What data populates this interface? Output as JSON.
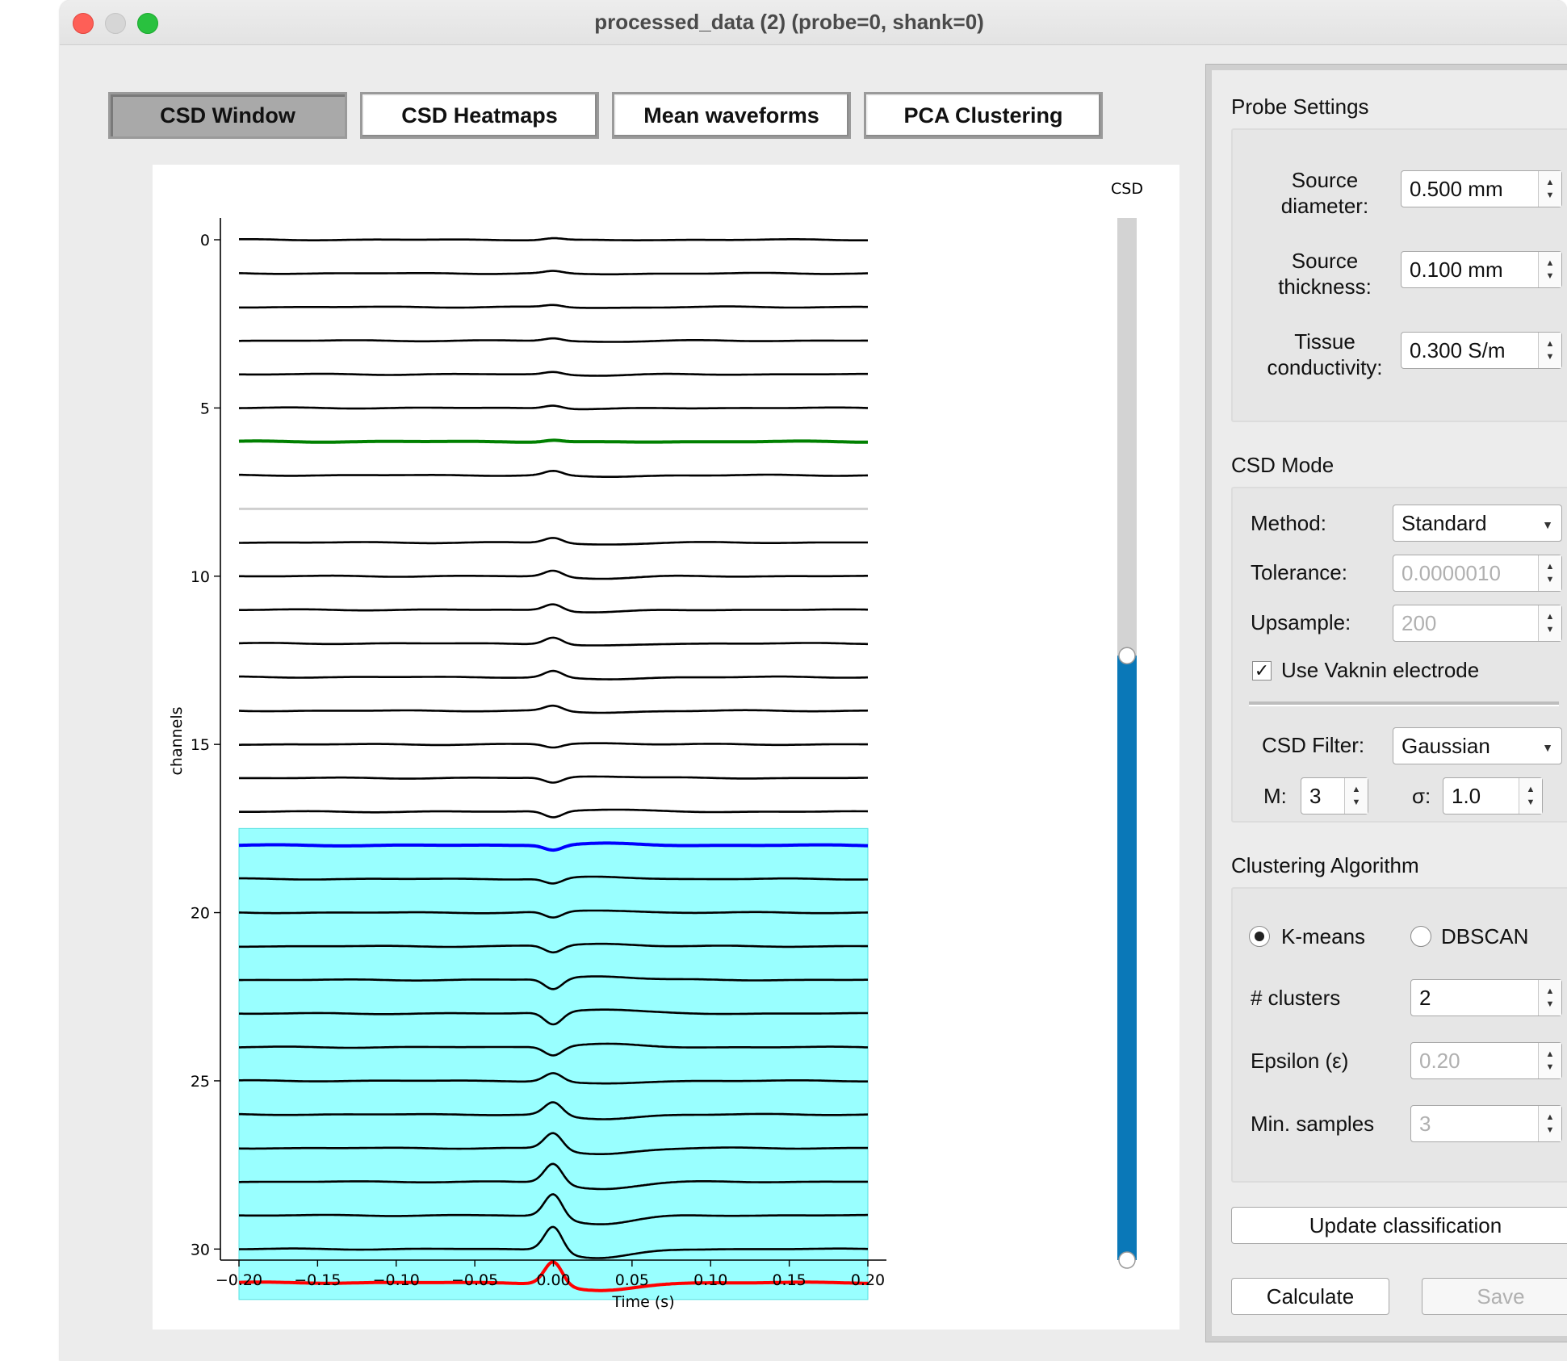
{
  "window": {
    "title": "processed_data (2) (probe=0, shank=0)"
  },
  "tabs": [
    {
      "label": "CSD Window",
      "active": true
    },
    {
      "label": "CSD Heatmaps",
      "active": false
    },
    {
      "label": "Mean waveforms",
      "active": false
    },
    {
      "label": "PCA Clustering",
      "active": false
    }
  ],
  "colors": {
    "trace": "#000000",
    "highlight_green": "#008000",
    "highlight_blue": "#0000ff",
    "highlight_red": "#ff0000",
    "window_fill": "#99ffff",
    "slider_fill": "#0a78b8",
    "slider_track": "#d3d3d3",
    "removed_channel": "#cfcfcf"
  },
  "csd_slider": {
    "label": "CSD",
    "level": 0.42
  },
  "chart_data": {
    "type": "line",
    "xlabel": "Time (s)",
    "ylabel": "channels",
    "xlim": [
      -0.2,
      0.2
    ],
    "ylim": [
      32.3,
      -0.8
    ],
    "xticks": [
      "−0.20",
      "−0.15",
      "−0.10",
      "−0.05",
      "0.00",
      "0.05",
      "0.10",
      "0.15",
      "0.20"
    ],
    "xtick_values": [
      -0.2,
      -0.15,
      -0.1,
      -0.05,
      0.0,
      0.05,
      0.1,
      0.15,
      0.2
    ],
    "yticks": [
      "0",
      "5",
      "10",
      "15",
      "20",
      "25",
      "30"
    ],
    "ytick_values": [
      0,
      5,
      10,
      15,
      20,
      25,
      30
    ],
    "channel_count": 32,
    "removed_channel": 8,
    "highlight_channels": {
      "green": 6,
      "blue": 18,
      "red": 31
    },
    "selected_window": {
      "from_channel": 17.5,
      "to_channel": 31.5,
      "x": [
        -0.2,
        0.2
      ]
    },
    "waveform_amplitudes": [
      0.2,
      0.25,
      0.25,
      0.3,
      0.3,
      0.35,
      0.2,
      0.5,
      0,
      0.6,
      0.7,
      0.75,
      0.8,
      0.75,
      0.6,
      -0.4,
      -0.6,
      -0.7,
      -0.55,
      -0.6,
      -0.7,
      -0.8,
      -1.2,
      -1.4,
      -1.0,
      1.0,
      1.5,
      1.9,
      2.3,
      2.7,
      2.9,
      2.7
    ]
  },
  "panel": {
    "probe_settings": {
      "title": "Probe Settings",
      "source_diameter": {
        "label": "Source\ndiameter:",
        "value": "0.500 mm"
      },
      "source_thickness": {
        "label": "Source\nthickness:",
        "value": "0.100 mm"
      },
      "tissue_conductivity": {
        "label": "Tissue\nconductivity:",
        "value": "0.300 S/m"
      }
    },
    "csd_mode": {
      "title": "CSD Mode",
      "method_label": "Method:",
      "method_value": "Standard",
      "tolerance_label": "Tolerance:",
      "tolerance_value": "0.0000010",
      "upsample_label": "Upsample:",
      "upsample_value": "200",
      "vaknin_label": "Use Vaknin electrode",
      "vaknin_checked": true,
      "filter_label": "CSD Filter:",
      "filter_value": "Gaussian",
      "m_label": "M:",
      "m_value": "3",
      "sigma_label": "σ:",
      "sigma_value": "1.0"
    },
    "clustering": {
      "title": "Clustering Algorithm",
      "kmeans_label": "K-means",
      "dbscan_label": "DBSCAN",
      "selected": "K-means",
      "clusters_label": "# clusters",
      "clusters_value": "2",
      "epsilon_label": "Epsilon (ε)",
      "epsilon_value": "0.20",
      "min_samples_label": "Min. samples",
      "min_samples_value": "3"
    },
    "buttons": {
      "update": "Update classification",
      "calculate": "Calculate",
      "save": "Save"
    }
  }
}
